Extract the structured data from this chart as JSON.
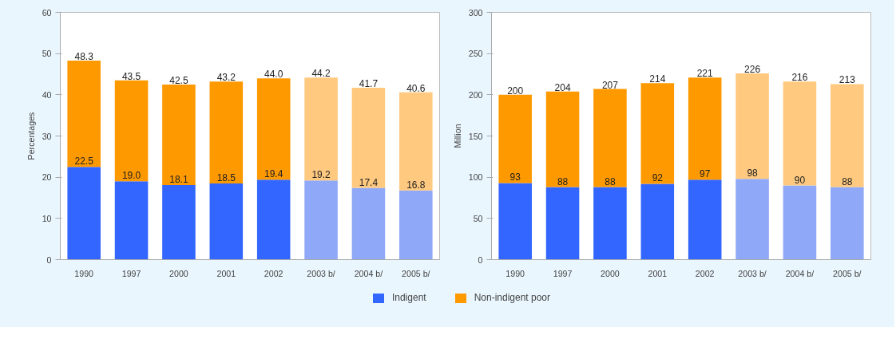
{
  "chart_data": [
    {
      "type": "bar",
      "stacked": true,
      "ylabel": "Percentages",
      "categories": [
        "1990",
        "1997",
        "2000",
        "2001",
        "2002",
        "2003 b/",
        "2004 b/",
        "2005 b/"
      ],
      "ylim": [
        0,
        60
      ],
      "yticks": [
        0,
        10,
        20,
        30,
        40,
        50,
        60
      ],
      "grid": false,
      "legend": "bottom",
      "series": [
        {
          "name": "Indigent",
          "color": "#3366ff",
          "colors": [
            "#3366ff",
            "#3366ff",
            "#3366ff",
            "#3366ff",
            "#3366ff",
            "#8fa8f7",
            "#8fa8f7",
            "#8fa8f7"
          ],
          "values": [
            22.5,
            19.0,
            18.1,
            18.5,
            19.4,
            19.2,
            17.4,
            16.8
          ],
          "value_labels": [
            "22.5",
            "19.0",
            "18.1",
            "18.5",
            "19.4",
            "19.2",
            "17.4",
            "16.8"
          ]
        },
        {
          "name": "Non-indigent poor",
          "color": "#ff9900",
          "colors": [
            "#ff9900",
            "#ff9900",
            "#ff9900",
            "#ff9900",
            "#ff9900",
            "#ffc97f",
            "#ffc97f",
            "#ffc97f"
          ],
          "values": [
            25.8,
            24.5,
            24.4,
            24.7,
            24.6,
            25.0,
            24.3,
            23.8
          ]
        }
      ],
      "totals": [
        "48.3",
        "43.5",
        "42.5",
        "43.2",
        "44.0",
        "44.2",
        "41.7",
        "40.6"
      ]
    },
    {
      "type": "bar",
      "stacked": true,
      "ylabel": "Million",
      "categories": [
        "1990",
        "1997",
        "2000",
        "2001",
        "2002",
        "2003 b/",
        "2004 b/",
        "2005 b/"
      ],
      "ylim": [
        0,
        300
      ],
      "yticks": [
        0,
        50,
        100,
        150,
        200,
        250,
        300
      ],
      "grid": false,
      "series": [
        {
          "name": "Indigent",
          "color": "#3366ff",
          "colors": [
            "#3366ff",
            "#3366ff",
            "#3366ff",
            "#3366ff",
            "#3366ff",
            "#8fa8f7",
            "#8fa8f7",
            "#8fa8f7"
          ],
          "values": [
            93,
            88,
            88,
            92,
            97,
            98,
            90,
            88
          ],
          "value_labels": [
            "93",
            "88",
            "88",
            "92",
            "97",
            "98",
            "90",
            "88"
          ]
        },
        {
          "name": "Non-indigent poor",
          "color": "#ff9900",
          "colors": [
            "#ff9900",
            "#ff9900",
            "#ff9900",
            "#ff9900",
            "#ff9900",
            "#ffc97f",
            "#ffc97f",
            "#ffc97f"
          ],
          "values": [
            107,
            116,
            119,
            122,
            124,
            128,
            126,
            125
          ]
        }
      ],
      "totals": [
        "200",
        "204",
        "207",
        "214",
        "221",
        "226",
        "216",
        "213"
      ]
    }
  ]
}
